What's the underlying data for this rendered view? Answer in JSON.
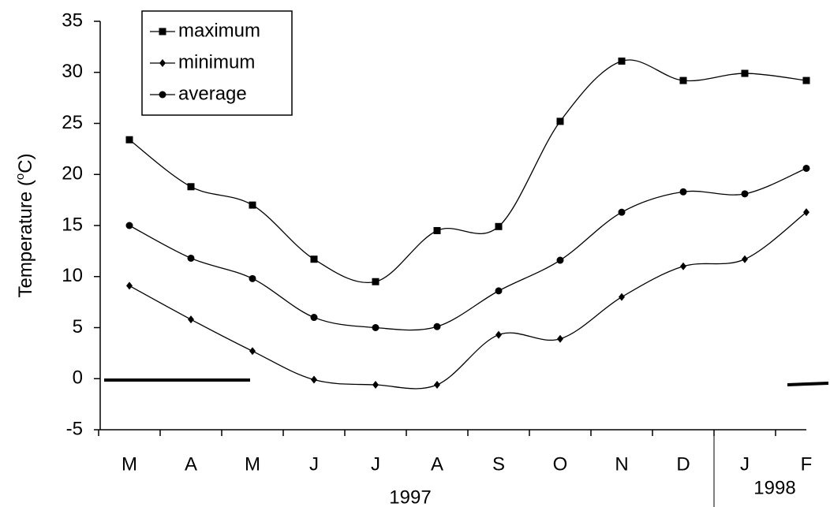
{
  "chart_data": {
    "type": "line",
    "ylabel": [
      "Temperature (",
      "o",
      "C)"
    ],
    "categories": [
      "M",
      "A",
      "M",
      "J",
      "J",
      "A",
      "S",
      "O",
      "N",
      "D",
      "J",
      "F"
    ],
    "x_groups": [
      "1997",
      "1998"
    ],
    "ylim": [
      -5,
      35
    ],
    "yticks": [
      -5,
      0,
      5,
      10,
      15,
      20,
      25,
      30,
      35
    ],
    "series": [
      {
        "name": "maximum",
        "color": "#000000",
        "marker": "square",
        "values": [
          23.4,
          18.8,
          17.0,
          11.7,
          9.5,
          14.5,
          14.9,
          25.2,
          31.1,
          29.2,
          29.9,
          29.2
        ]
      },
      {
        "name": "minimum",
        "color": "#000000",
        "marker": "diamond",
        "values": [
          9.1,
          5.8,
          2.7,
          -0.1,
          -0.6,
          -0.6,
          4.3,
          3.9,
          8.0,
          11.0,
          11.7,
          16.3
        ]
      },
      {
        "name": "average",
        "color": "#000000",
        "marker": "circle",
        "values": [
          15.0,
          11.8,
          9.8,
          6.0,
          5.0,
          5.1,
          8.6,
          11.6,
          16.3,
          18.3,
          18.1,
          20.6
        ]
      }
    ]
  }
}
